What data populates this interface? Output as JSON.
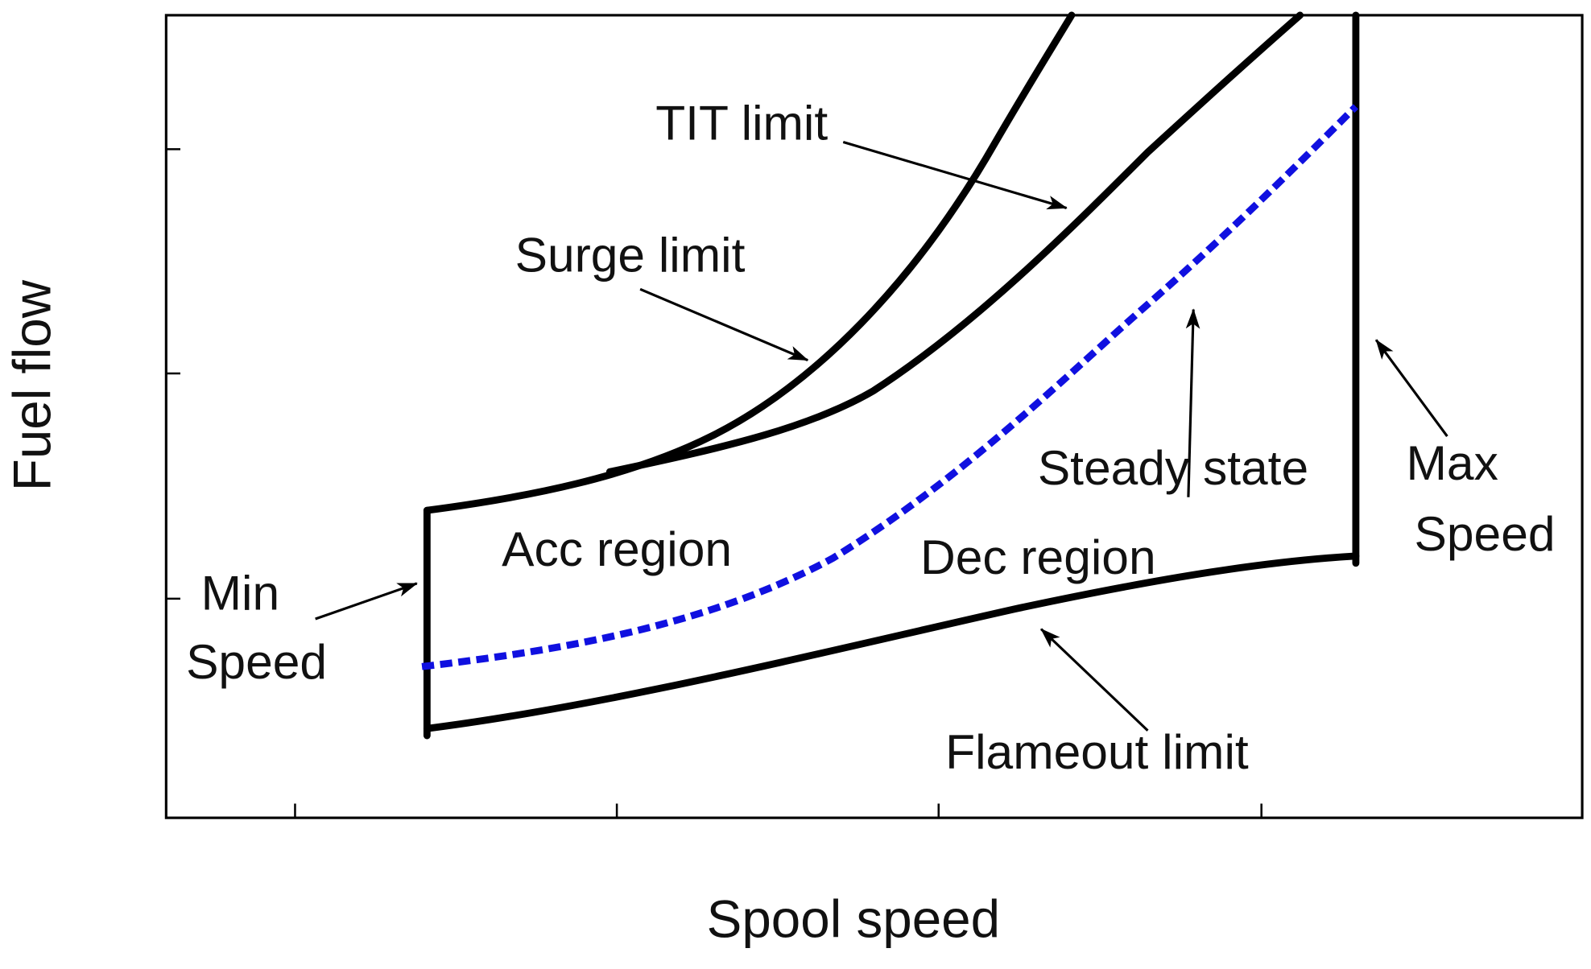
{
  "axes": {
    "x_label": "Spool speed",
    "y_label": "Fuel flow"
  },
  "annotations": {
    "tit_limit": "TIT limit",
    "surge_limit": "Surge limit",
    "steady_state": "Steady state",
    "max_speed": [
      "Max",
      "Speed"
    ],
    "min_speed": [
      "Min",
      "Speed"
    ],
    "acc_region": "Acc region",
    "dec_region": "Dec region",
    "flameout_limit": "Flameout limit"
  }
}
